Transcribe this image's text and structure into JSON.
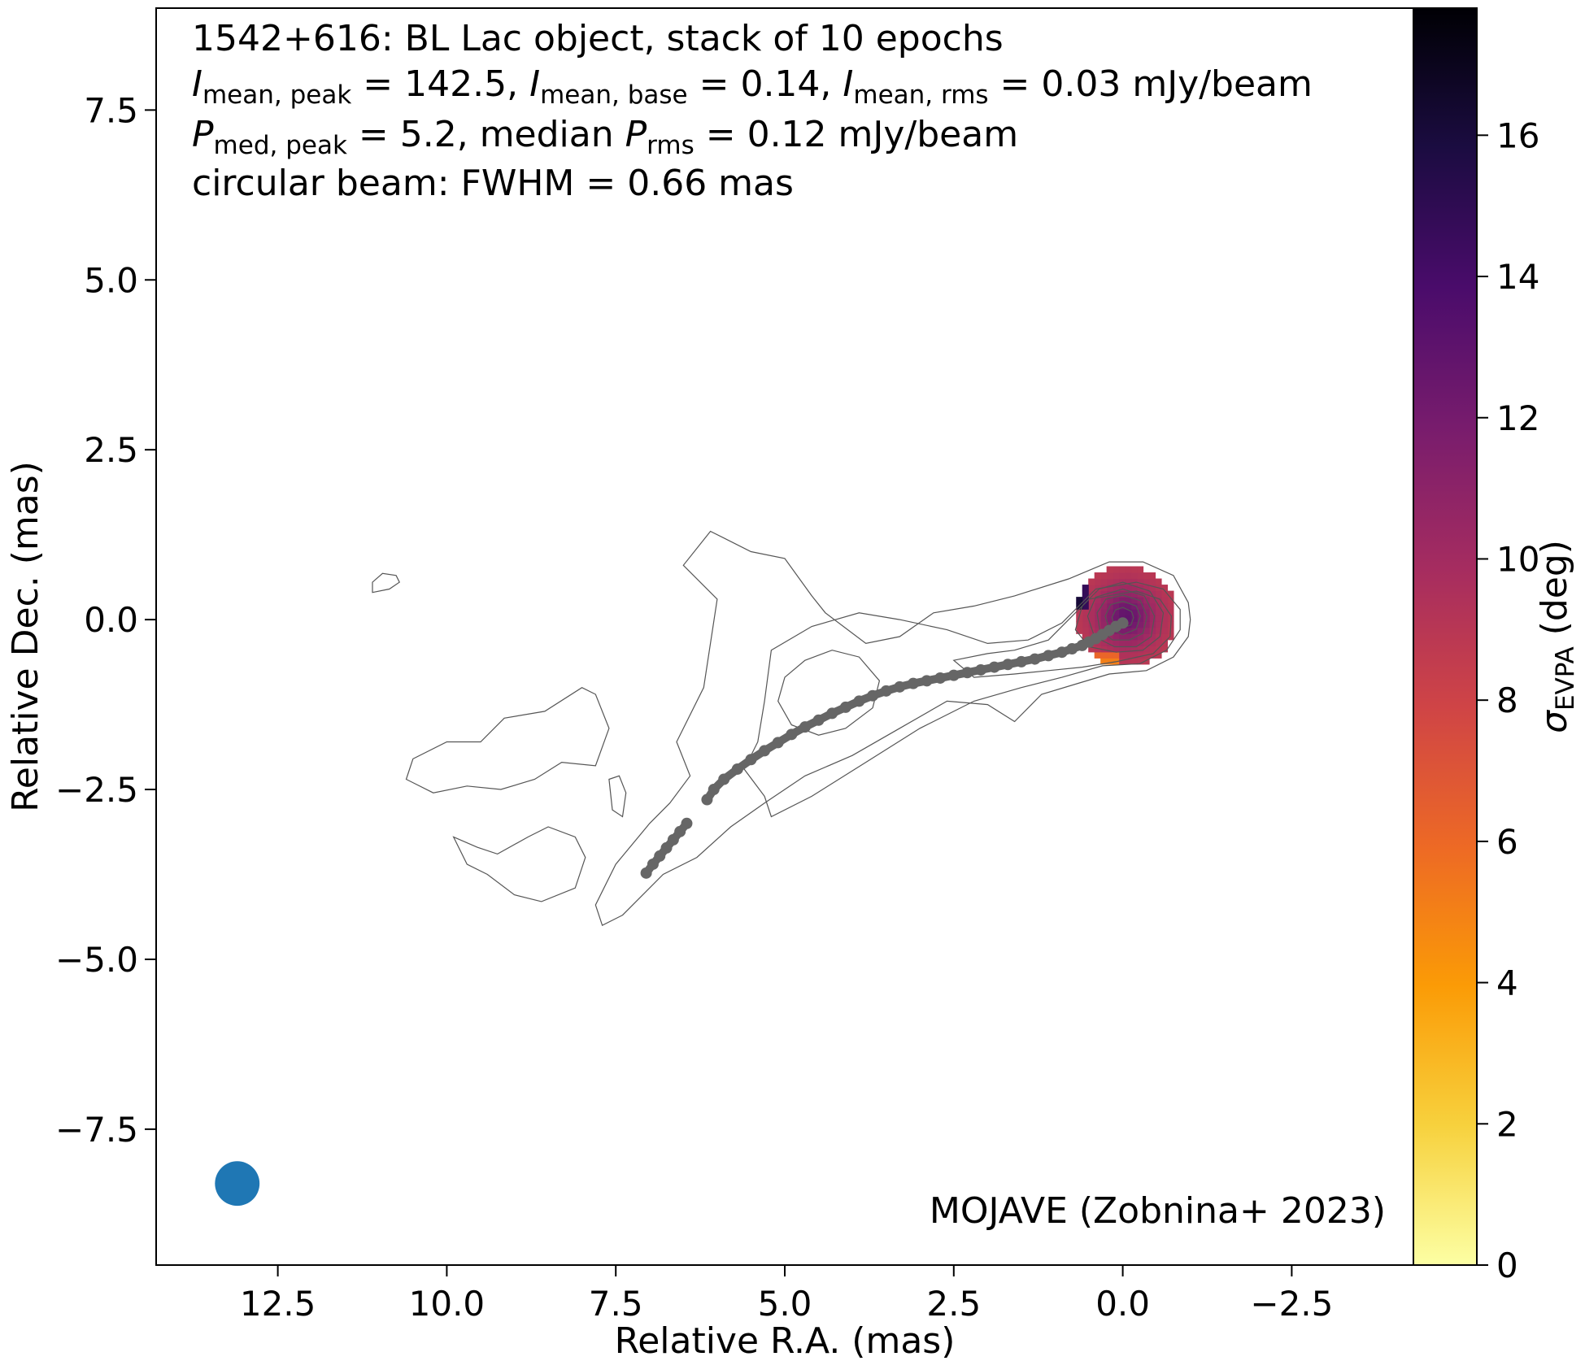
{
  "chart_data": {
    "type": "scatter",
    "subtype": "radio-map-with-contours-and-ridge-line",
    "annotation_lines": [
      "1542+616: BL Lac object, stack of 10 epochs",
      "I_mean,peak = 142.5, I_mean,base = 0.14, I_mean,rms = 0.03 mJy/beam",
      "P_med,peak = 5.2, median P_rms = 0.12 mJy/beam",
      "circular beam: FWHM = 0.66 mas"
    ],
    "annotation": {
      "line1": "1542+616: BL Lac object, stack of 10 epochs",
      "line2": {
        "s1": "I",
        "s1_sub": "mean, peak",
        "v1": " = 142.5, ",
        "s2": "I",
        "s2_sub": "mean, base",
        "v2": " = 0.14, ",
        "s3": "I",
        "s3_sub": "mean, rms",
        "v3": " = 0.03 mJy/beam"
      },
      "line3": {
        "s1": "P",
        "s1_sub": "med, peak",
        "v1": " = 5.2, median ",
        "s2": "P",
        "s2_sub": "rms",
        "v2": " = 0.12 mJy/beam"
      },
      "line4": "circular beam: FWHM = 0.66 mas"
    },
    "credit": "MOJAVE (Zobnina+ 2023)",
    "xlabel": "Relative R.A. (mas)",
    "ylabel": "Relative Dec. (mas)",
    "colorbar_label": {
      "symbol": "σ",
      "sub": "EVPA",
      "unit": " (deg)"
    },
    "xlim": [
      14.3,
      -4.3
    ],
    "ylim": [
      -9.5,
      9.0
    ],
    "xticks": [
      12.5,
      10.0,
      7.5,
      5.0,
      2.5,
      0.0,
      -2.5
    ],
    "xtick_labels": [
      "12.5",
      "10.0",
      "7.5",
      "5.0",
      "2.5",
      "0.0",
      "−2.5"
    ],
    "yticks": [
      7.5,
      5.0,
      2.5,
      0.0,
      -2.5,
      -5.0,
      -7.5
    ],
    "ytick_labels": [
      "7.5",
      "5.0",
      "2.5",
      "0.0",
      "−2.5",
      "−5.0",
      "−7.5"
    ],
    "colorbar_range": [
      0,
      17.8
    ],
    "colorbar_ticks": [
      0,
      2,
      4,
      6,
      8,
      10,
      12,
      14,
      16
    ],
    "colorbar_tick_labels": [
      "0",
      "2",
      "4",
      "6",
      "8",
      "10",
      "12",
      "14",
      "16"
    ],
    "colormap": "inferno_r",
    "colormap_stops": [
      "#fcffa4",
      "#f7d13d",
      "#fb9b06",
      "#ed6925",
      "#cf4446",
      "#a52c60",
      "#781c6d",
      "#4a0c6b",
      "#1b0c41",
      "#000004"
    ],
    "beam": {
      "center": [
        13.1,
        -8.3
      ],
      "fwhm_mas": 0.66,
      "color": "#1f77b4"
    },
    "ridge_color": "#666666",
    "contour_color": "#555555",
    "ridge_line": [
      [
        0.0,
        -0.05
      ],
      [
        0.1,
        -0.1
      ],
      [
        0.2,
        -0.16
      ],
      [
        0.3,
        -0.22
      ],
      [
        0.4,
        -0.28
      ],
      [
        0.5,
        -0.33
      ],
      [
        0.6,
        -0.38
      ],
      [
        0.75,
        -0.43
      ],
      [
        0.9,
        -0.48
      ],
      [
        1.1,
        -0.53
      ],
      [
        1.3,
        -0.58
      ],
      [
        1.5,
        -0.62
      ],
      [
        1.7,
        -0.66
      ],
      [
        1.9,
        -0.7
      ],
      [
        2.1,
        -0.74
      ],
      [
        2.3,
        -0.78
      ],
      [
        2.5,
        -0.82
      ],
      [
        2.7,
        -0.86
      ],
      [
        2.9,
        -0.9
      ],
      [
        3.1,
        -0.94
      ],
      [
        3.3,
        -0.99
      ],
      [
        3.5,
        -1.05
      ],
      [
        3.7,
        -1.12
      ],
      [
        3.9,
        -1.2
      ],
      [
        4.1,
        -1.29
      ],
      [
        4.3,
        -1.38
      ],
      [
        4.5,
        -1.48
      ],
      [
        4.7,
        -1.58
      ],
      [
        4.9,
        -1.69
      ],
      [
        5.1,
        -1.81
      ],
      [
        5.3,
        -1.93
      ],
      [
        5.5,
        -2.06
      ],
      [
        5.7,
        -2.2
      ],
      [
        5.9,
        -2.35
      ],
      [
        6.05,
        -2.5
      ],
      [
        6.15,
        -2.65
      ],
      [
        6.45,
        -3.0
      ],
      [
        6.55,
        -3.12
      ],
      [
        6.65,
        -3.24
      ],
      [
        6.75,
        -3.36
      ],
      [
        6.85,
        -3.48
      ],
      [
        6.95,
        -3.6
      ],
      [
        7.05,
        -3.73
      ]
    ],
    "image_center": [
      0.0,
      0.05
    ],
    "contour_levels_note": "",
    "contours": [
      [
        [
          5.5,
          1.0
        ],
        [
          5.0,
          0.9
        ],
        [
          4.6,
          0.35
        ],
        [
          4.4,
          0.1
        ],
        [
          3.8,
          -0.35
        ],
        [
          3.3,
          -0.25
        ],
        [
          2.8,
          0.1
        ],
        [
          2.2,
          0.2
        ],
        [
          1.6,
          0.35
        ],
        [
          0.8,
          0.6
        ],
        [
          0.2,
          0.85
        ],
        [
          -0.3,
          0.85
        ],
        [
          -0.75,
          0.65
        ],
        [
          -0.97,
          0.25
        ],
        [
          -1.0,
          0.0
        ],
        [
          -0.97,
          -0.25
        ],
        [
          -0.75,
          -0.55
        ],
        [
          -0.35,
          -0.75
        ],
        [
          0.2,
          -0.8
        ],
        [
          0.7,
          -0.95
        ],
        [
          1.2,
          -1.1
        ],
        [
          1.6,
          -1.5
        ],
        [
          2.0,
          -1.25
        ],
        [
          2.6,
          -1.2
        ],
        [
          3.3,
          -1.6
        ],
        [
          4.0,
          -2.0
        ],
        [
          4.7,
          -2.3
        ],
        [
          5.3,
          -2.7
        ],
        [
          5.8,
          -3.05
        ],
        [
          6.3,
          -3.5
        ],
        [
          6.8,
          -3.75
        ],
        [
          7.4,
          -4.35
        ],
        [
          7.7,
          -4.5
        ],
        [
          7.8,
          -4.2
        ],
        [
          7.5,
          -3.6
        ],
        [
          7.0,
          -3.0
        ],
        [
          6.7,
          -2.7
        ],
        [
          6.4,
          -2.3
        ],
        [
          6.6,
          -1.8
        ],
        [
          6.2,
          -1.0
        ],
        [
          6.0,
          0.3
        ],
        [
          6.5,
          0.8
        ],
        [
          6.1,
          1.3
        ],
        [
          5.5,
          1.0
        ]
      ],
      [
        [
          3.3,
          0.0
        ],
        [
          2.6,
          -0.15
        ],
        [
          2.0,
          -0.35
        ],
        [
          1.4,
          -0.3
        ],
        [
          0.9,
          -0.05
        ],
        [
          0.4,
          0.45
        ],
        [
          -0.2,
          0.55
        ],
        [
          -0.6,
          0.45
        ],
        [
          -0.85,
          0.15
        ],
        [
          -0.85,
          -0.15
        ],
        [
          -0.65,
          -0.45
        ],
        [
          -0.25,
          -0.65
        ],
        [
          0.3,
          -0.68
        ],
        [
          0.9,
          -0.85
        ],
        [
          1.5,
          -1.0
        ],
        [
          2.2,
          -1.2
        ],
        [
          3.0,
          -1.6
        ],
        [
          3.8,
          -2.1
        ],
        [
          4.6,
          -2.6
        ],
        [
          5.2,
          -2.9
        ],
        [
          5.3,
          -2.6
        ],
        [
          5.6,
          -2.2
        ],
        [
          5.4,
          -1.8
        ],
        [
          5.3,
          -1.2
        ],
        [
          5.2,
          -0.45
        ],
        [
          4.6,
          -0.1
        ],
        [
          3.9,
          0.1
        ],
        [
          3.3,
          0.0
        ]
      ],
      [
        [
          4.7,
          -0.6
        ],
        [
          4.3,
          -0.45
        ],
        [
          3.9,
          -0.55
        ],
        [
          3.6,
          -0.9
        ],
        [
          3.7,
          -1.3
        ],
        [
          4.1,
          -1.6
        ],
        [
          4.5,
          -1.7
        ],
        [
          4.9,
          -1.55
        ],
        [
          5.1,
          -1.2
        ],
        [
          5.0,
          -0.85
        ],
        [
          4.7,
          -0.6
        ]
      ],
      [
        [
          1.6,
          -0.45
        ],
        [
          1.1,
          -0.3
        ],
        [
          0.5,
          0.3
        ],
        [
          -0.2,
          0.42
        ],
        [
          -0.55,
          0.3
        ],
        [
          -0.72,
          0.05
        ],
        [
          -0.7,
          -0.25
        ],
        [
          -0.45,
          -0.5
        ],
        [
          0.1,
          -0.62
        ],
        [
          0.6,
          -0.7
        ],
        [
          1.1,
          -0.75
        ],
        [
          1.6,
          -0.8
        ],
        [
          2.2,
          -0.85
        ],
        [
          2.5,
          -0.6
        ],
        [
          2.0,
          -0.5
        ],
        [
          1.6,
          -0.45
        ]
      ],
      [
        [
          0.0,
          0.55
        ],
        [
          -0.4,
          0.42
        ],
        [
          -0.6,
          0.1
        ],
        [
          -0.55,
          -0.25
        ],
        [
          -0.3,
          -0.45
        ],
        [
          0.1,
          -0.48
        ],
        [
          0.5,
          -0.4
        ],
        [
          0.7,
          -0.15
        ],
        [
          0.6,
          0.2
        ],
        [
          0.35,
          0.45
        ],
        [
          0.0,
          0.55
        ]
      ],
      [
        [
          0.0,
          0.45
        ],
        [
          -0.32,
          0.35
        ],
        [
          -0.47,
          0.05
        ],
        [
          -0.42,
          -0.25
        ],
        [
          -0.2,
          -0.4
        ],
        [
          0.12,
          -0.4
        ],
        [
          0.42,
          -0.25
        ],
        [
          0.52,
          0.05
        ],
        [
          0.4,
          0.33
        ],
        [
          0.0,
          0.45
        ]
      ],
      [
        [
          0.0,
          0.36
        ],
        [
          -0.26,
          0.28
        ],
        [
          -0.36,
          0.05
        ],
        [
          -0.3,
          -0.2
        ],
        [
          -0.1,
          -0.3
        ],
        [
          0.15,
          -0.3
        ],
        [
          0.34,
          -0.15
        ],
        [
          0.38,
          0.1
        ],
        [
          0.25,
          0.3
        ],
        [
          0.0,
          0.36
        ]
      ],
      [
        [
          0.0,
          0.27
        ],
        [
          -0.2,
          0.2
        ],
        [
          -0.26,
          0.05
        ],
        [
          -0.2,
          -0.14
        ],
        [
          0.0,
          -0.22
        ],
        [
          0.2,
          -0.14
        ],
        [
          0.26,
          0.05
        ],
        [
          0.18,
          0.22
        ],
        [
          0.0,
          0.27
        ]
      ],
      [
        [
          0.0,
          0.18
        ],
        [
          -0.13,
          0.12
        ],
        [
          -0.16,
          0.03
        ],
        [
          -0.12,
          -0.08
        ],
        [
          0.0,
          -0.12
        ],
        [
          0.12,
          -0.08
        ],
        [
          0.16,
          0.03
        ],
        [
          0.11,
          0.14
        ],
        [
          0.0,
          0.18
        ]
      ],
      [
        [
          10.6,
          -2.35
        ],
        [
          10.5,
          -2.05
        ],
        [
          10.0,
          -1.8
        ],
        [
          9.5,
          -1.8
        ],
        [
          9.15,
          -1.45
        ],
        [
          8.55,
          -1.35
        ],
        [
          8.0,
          -1.0
        ],
        [
          7.8,
          -1.1
        ],
        [
          7.6,
          -1.6
        ],
        [
          7.8,
          -2.15
        ],
        [
          8.3,
          -2.1
        ],
        [
          8.7,
          -2.35
        ],
        [
          9.2,
          -2.5
        ],
        [
          9.7,
          -2.45
        ],
        [
          10.2,
          -2.55
        ],
        [
          10.6,
          -2.35
        ]
      ],
      [
        [
          9.9,
          -3.2
        ],
        [
          9.7,
          -3.6
        ],
        [
          9.4,
          -3.75
        ],
        [
          9.0,
          -4.05
        ],
        [
          8.6,
          -4.15
        ],
        [
          8.1,
          -3.95
        ],
        [
          7.95,
          -3.5
        ],
        [
          8.1,
          -3.2
        ],
        [
          8.5,
          -3.05
        ],
        [
          8.8,
          -3.2
        ],
        [
          9.25,
          -3.45
        ],
        [
          9.55,
          -3.35
        ],
        [
          9.9,
          -3.2
        ]
      ],
      [
        [
          7.6,
          -2.35
        ],
        [
          7.45,
          -2.3
        ],
        [
          7.35,
          -2.55
        ],
        [
          7.4,
          -2.9
        ],
        [
          7.55,
          -2.8
        ],
        [
          7.6,
          -2.35
        ]
      ],
      [
        [
          11.1,
          0.4
        ],
        [
          10.85,
          0.45
        ],
        [
          10.7,
          0.55
        ],
        [
          10.75,
          0.65
        ],
        [
          10.95,
          0.68
        ],
        [
          11.1,
          0.55
        ],
        [
          11.1,
          0.4
        ]
      ]
    ]
  }
}
